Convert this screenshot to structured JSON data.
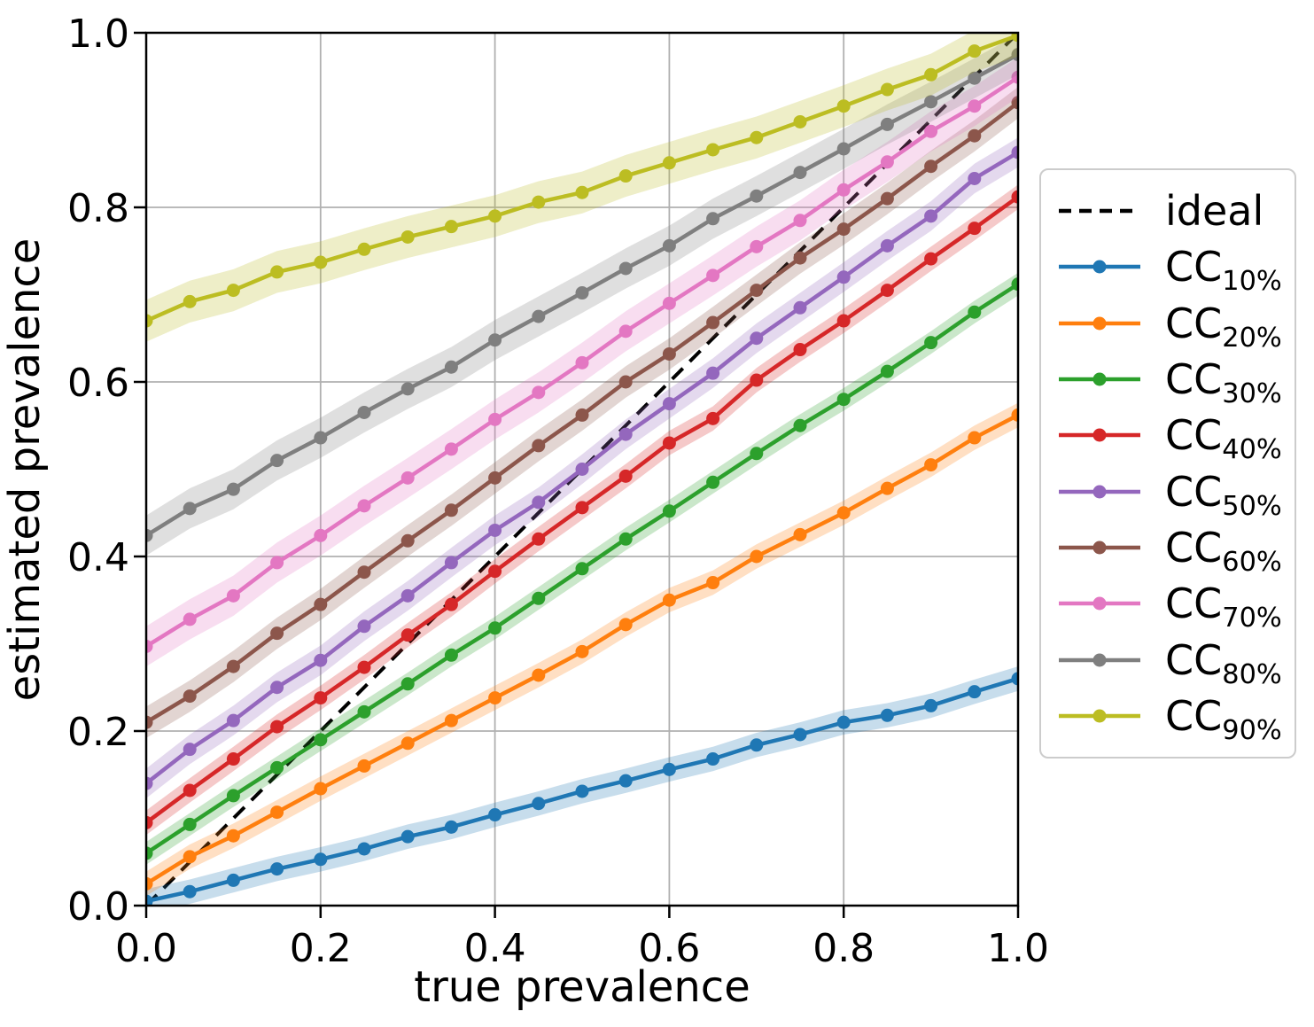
{
  "chart_data": {
    "type": "line",
    "title": "",
    "xlabel": "true prevalence",
    "ylabel": "estimated prevalence",
    "xlim": [
      0.0,
      1.0
    ],
    "ylim": [
      0.0,
      1.0
    ],
    "xtick_values": [
      0.0,
      0.2,
      0.4,
      0.6,
      0.8,
      1.0
    ],
    "xtick_labels": [
      "0.0",
      "0.2",
      "0.4",
      "0.6",
      "0.8",
      "1.0"
    ],
    "ytick_values": [
      0.0,
      0.2,
      0.4,
      0.6,
      0.8,
      1.0
    ],
    "ytick_labels": [
      "0.0",
      "0.2",
      "0.4",
      "0.6",
      "0.8",
      "1.0"
    ],
    "grid": true,
    "grid_color": "#b0b0b0",
    "legend_position": "outside-right",
    "x": [
      0.0,
      0.05,
      0.1,
      0.15,
      0.2,
      0.25,
      0.3,
      0.35,
      0.4,
      0.45,
      0.5,
      0.55,
      0.6,
      0.65,
      0.7,
      0.75,
      0.8,
      0.85,
      0.9,
      0.95,
      1.0
    ],
    "ideal": {
      "label": "ideal",
      "color": "#000000",
      "dashed": true,
      "x": [
        0.0,
        1.0
      ],
      "y": [
        0.0,
        1.0
      ]
    },
    "series": [
      {
        "name": "CC",
        "sub": "10%",
        "color": "#1f77b4",
        "band": 0.014,
        "values": [
          0.005,
          0.016,
          0.029,
          0.042,
          0.053,
          0.065,
          0.079,
          0.09,
          0.104,
          0.117,
          0.131,
          0.143,
          0.156,
          0.168,
          0.184,
          0.196,
          0.21,
          0.218,
          0.229,
          0.245,
          0.26
        ]
      },
      {
        "name": "CC",
        "sub": "20%",
        "color": "#ff7f0e",
        "band": 0.014,
        "values": [
          0.025,
          0.056,
          0.08,
          0.107,
          0.134,
          0.16,
          0.186,
          0.212,
          0.238,
          0.264,
          0.291,
          0.322,
          0.35,
          0.37,
          0.4,
          0.425,
          0.45,
          0.478,
          0.505,
          0.536,
          0.562
        ]
      },
      {
        "name": "CC",
        "sub": "30%",
        "color": "#2ca02c",
        "band": 0.013,
        "values": [
          0.06,
          0.093,
          0.126,
          0.158,
          0.19,
          0.222,
          0.254,
          0.287,
          0.318,
          0.352,
          0.386,
          0.42,
          0.452,
          0.485,
          0.518,
          0.55,
          0.58,
          0.612,
          0.645,
          0.68,
          0.712
        ]
      },
      {
        "name": "CC",
        "sub": "40%",
        "color": "#d62728",
        "band": 0.014,
        "values": [
          0.095,
          0.132,
          0.168,
          0.205,
          0.238,
          0.273,
          0.31,
          0.345,
          0.383,
          0.42,
          0.456,
          0.492,
          0.53,
          0.558,
          0.602,
          0.637,
          0.67,
          0.705,
          0.741,
          0.776,
          0.812
        ]
      },
      {
        "name": "CC",
        "sub": "50%",
        "color": "#9467bd",
        "band": 0.017,
        "values": [
          0.14,
          0.179,
          0.212,
          0.25,
          0.281,
          0.32,
          0.355,
          0.393,
          0.43,
          0.462,
          0.5,
          0.54,
          0.575,
          0.61,
          0.65,
          0.685,
          0.72,
          0.756,
          0.79,
          0.833,
          0.863
        ]
      },
      {
        "name": "CC",
        "sub": "60%",
        "color": "#8c564b",
        "band": 0.018,
        "values": [
          0.21,
          0.24,
          0.274,
          0.312,
          0.345,
          0.382,
          0.418,
          0.453,
          0.49,
          0.527,
          0.562,
          0.6,
          0.632,
          0.668,
          0.705,
          0.742,
          0.775,
          0.81,
          0.847,
          0.882,
          0.92
        ]
      },
      {
        "name": "CC",
        "sub": "70%",
        "color": "#e377c2",
        "band": 0.023,
        "values": [
          0.297,
          0.328,
          0.355,
          0.393,
          0.424,
          0.458,
          0.49,
          0.523,
          0.557,
          0.588,
          0.622,
          0.658,
          0.69,
          0.722,
          0.755,
          0.785,
          0.82,
          0.852,
          0.887,
          0.916,
          0.949
        ]
      },
      {
        "name": "CC",
        "sub": "80%",
        "color": "#7f7f7f",
        "band": 0.023,
        "values": [
          0.424,
          0.455,
          0.477,
          0.51,
          0.536,
          0.565,
          0.592,
          0.617,
          0.648,
          0.675,
          0.702,
          0.73,
          0.756,
          0.787,
          0.813,
          0.84,
          0.867,
          0.895,
          0.921,
          0.948,
          0.975
        ]
      },
      {
        "name": "CC",
        "sub": "90%",
        "color": "#bcbd22",
        "band": 0.024,
        "values": [
          0.67,
          0.692,
          0.705,
          0.726,
          0.737,
          0.752,
          0.766,
          0.778,
          0.79,
          0.806,
          0.817,
          0.836,
          0.851,
          0.866,
          0.88,
          0.898,
          0.916,
          0.935,
          0.952,
          0.979,
          0.997
        ]
      }
    ]
  }
}
